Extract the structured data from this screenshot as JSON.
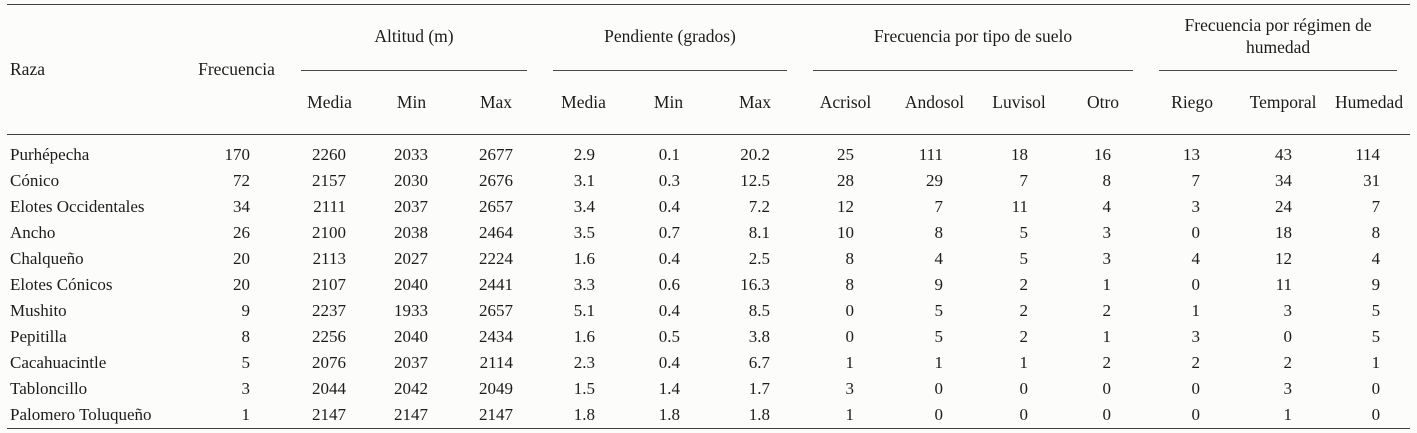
{
  "table": {
    "header": {
      "raza": "Raza",
      "frecuencia": "Frecuencia"
    },
    "groups": [
      {
        "label": "Altitud (m)",
        "cols": [
          "Media",
          "Min",
          "Max"
        ]
      },
      {
        "label": "Pendiente (grados)",
        "cols": [
          "Media",
          "Min",
          "Max"
        ]
      },
      {
        "label": "Frecuencia por tipo de suelo",
        "cols": [
          "Acrisol",
          "Andosol",
          "Luvisol",
          "Otro"
        ]
      },
      {
        "label": "Frecuencia por régimen de humedad",
        "cols": [
          "Riego",
          "Temporal",
          "Humedad"
        ]
      }
    ],
    "rows": [
      {
        "raza": "Purhépecha",
        "values": [
          "170",
          "2260",
          "2033",
          "2677",
          "2.9",
          "0.1",
          "20.2",
          "25",
          "111",
          "18",
          "16",
          "13",
          "43",
          "114"
        ]
      },
      {
        "raza": "Cónico",
        "values": [
          "72",
          "2157",
          "2030",
          "2676",
          "3.1",
          "0.3",
          "12.5",
          "28",
          "29",
          "7",
          "8",
          "7",
          "34",
          "31"
        ]
      },
      {
        "raza": "Elotes Occidentales",
        "values": [
          "34",
          "2111",
          "2037",
          "2657",
          "3.4",
          "0.4",
          "7.2",
          "12",
          "7",
          "11",
          "4",
          "3",
          "24",
          "7"
        ]
      },
      {
        "raza": "Ancho",
        "values": [
          "26",
          "2100",
          "2038",
          "2464",
          "3.5",
          "0.7",
          "8.1",
          "10",
          "8",
          "5",
          "3",
          "0",
          "18",
          "8"
        ]
      },
      {
        "raza": "Chalqueño",
        "values": [
          "20",
          "2113",
          "2027",
          "2224",
          "1.6",
          "0.4",
          "2.5",
          "8",
          "4",
          "5",
          "3",
          "4",
          "12",
          "4"
        ]
      },
      {
        "raza": "Elotes Cónicos",
        "values": [
          "20",
          "2107",
          "2040",
          "2441",
          "3.3",
          "0.6",
          "16.3",
          "8",
          "9",
          "2",
          "1",
          "0",
          "11",
          "9"
        ]
      },
      {
        "raza": "Mushito",
        "values": [
          "9",
          "2237",
          "1933",
          "2657",
          "5.1",
          "0.4",
          "8.5",
          "0",
          "5",
          "2",
          "2",
          "1",
          "3",
          "5"
        ]
      },
      {
        "raza": "Pepitilla",
        "values": [
          "8",
          "2256",
          "2040",
          "2434",
          "1.6",
          "0.5",
          "3.8",
          "0",
          "5",
          "2",
          "1",
          "3",
          "0",
          "5"
        ]
      },
      {
        "raza": "Cacahuacintle",
        "values": [
          "5",
          "2076",
          "2037",
          "2114",
          "2.3",
          "0.4",
          "6.7",
          "1",
          "1",
          "1",
          "2",
          "2",
          "2",
          "1"
        ]
      },
      {
        "raza": "Tabloncillo",
        "values": [
          "3",
          "2044",
          "2042",
          "2049",
          "1.5",
          "1.4",
          "1.7",
          "3",
          "0",
          "0",
          "0",
          "0",
          "3",
          "0"
        ]
      },
      {
        "raza": "Palomero Toluqueño",
        "values": [
          "1",
          "2147",
          "2147",
          "2147",
          "1.8",
          "1.8",
          "1.8",
          "1",
          "0",
          "0",
          "0",
          "0",
          "1",
          "0"
        ]
      }
    ]
  }
}
